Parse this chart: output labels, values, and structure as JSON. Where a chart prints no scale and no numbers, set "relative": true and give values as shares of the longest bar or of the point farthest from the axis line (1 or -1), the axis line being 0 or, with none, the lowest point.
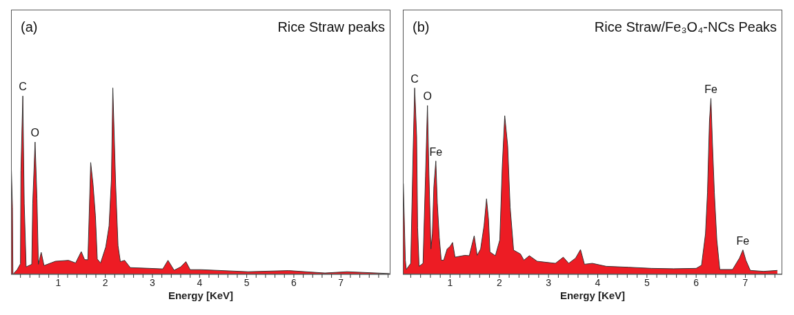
{
  "chart_data": [
    {
      "type": "area",
      "title": "Rice Straw peaks",
      "xlabel": "Energy [KeV]",
      "relative": true,
      "color": "#ed1c24",
      "grid": false,
      "legend": false,
      "annotations": [
        "(a)",
        {
          "text": "C",
          "x": 0.25,
          "y": 0.957
        },
        {
          "text": "O",
          "x": 0.51,
          "y": 0.71
        }
      ],
      "xlim": [
        0,
        8.05
      ],
      "xticks": [
        {
          "value": 0.2,
          "label": null
        },
        {
          "value": 0.4,
          "label": null
        },
        {
          "value": 0.6,
          "label": null
        },
        {
          "value": 0.8,
          "label": null
        },
        1,
        {
          "value": 1.2,
          "label": null
        },
        {
          "value": 1.4,
          "label": null
        },
        {
          "value": 1.6,
          "label": null
        },
        {
          "value": 1.8,
          "label": null
        },
        2,
        {
          "value": 2.2,
          "label": null
        },
        {
          "value": 2.4,
          "label": null
        },
        {
          "value": 2.6,
          "label": null
        },
        {
          "value": 2.8,
          "label": null
        },
        3,
        {
          "value": 3.2,
          "label": null
        },
        {
          "value": 3.4,
          "label": null
        },
        {
          "value": 3.6,
          "label": null
        },
        {
          "value": 3.8,
          "label": null
        },
        4,
        {
          "value": 4.2,
          "label": null
        },
        {
          "value": 4.4,
          "label": null
        },
        {
          "value": 4.6,
          "label": null
        },
        {
          "value": 4.8,
          "label": null
        },
        5,
        {
          "value": 5.2,
          "label": null
        },
        {
          "value": 5.4,
          "label": null
        },
        {
          "value": 5.6,
          "label": null
        },
        {
          "value": 5.8,
          "label": null
        },
        6,
        {
          "value": 6.2,
          "label": null
        },
        {
          "value": 6.4,
          "label": null
        },
        {
          "value": 6.6,
          "label": null
        },
        {
          "value": 6.8,
          "label": null
        },
        7,
        {
          "value": 7.2,
          "label": null
        },
        {
          "value": 7.4,
          "label": null
        },
        {
          "value": 7.6,
          "label": null
        },
        {
          "value": 7.8,
          "label": null
        },
        {
          "value": 8,
          "label": null
        }
      ],
      "x": [
        0,
        0.03,
        0.04,
        0.13,
        0.2,
        0.21,
        0.25,
        0.28,
        0.32,
        0.44,
        0.46,
        0.51,
        0.55,
        0.58,
        0.64,
        0.7,
        0.94,
        1.22,
        1.37,
        1.49,
        1.56,
        1.63,
        1.65,
        1.69,
        1.74,
        1.79,
        1.83,
        1.9,
        2.01,
        2.08,
        2.13,
        2.16,
        2.22,
        2.27,
        2.32,
        2.41,
        2.53,
        2.94,
        3.22,
        3.33,
        3.46,
        3.6,
        3.71,
        3.8,
        4.03,
        5.03,
        5.89,
        6.66,
        7.13,
        8.03
      ],
      "values": [
        0.63,
        0.36,
        0,
        0.025,
        0.057,
        0.556,
        0.957,
        0.38,
        0.04,
        0.054,
        0.38,
        0.71,
        0.405,
        0.054,
        0.118,
        0.047,
        0.07,
        0.075,
        0.061,
        0.122,
        0.079,
        0.078,
        0.244,
        0.6,
        0.484,
        0.315,
        0.082,
        0.061,
        0.147,
        0.26,
        0.51,
        1,
        0.477,
        0.154,
        0.068,
        0.075,
        0.036,
        0.032,
        0.029,
        0.075,
        0.022,
        0.04,
        0.068,
        0.025,
        0.025,
        0.014,
        0.02,
        0.007,
        0.014,
        0.004
      ]
    },
    {
      "type": "area",
      "title": "Rice Straw/Fe₃O₄-NCs Peaks",
      "xlabel": "Energy [KeV]",
      "relative": true,
      "color": "#ed1c24",
      "grid": false,
      "legend": false,
      "annotations": [
        "(b)",
        {
          "text": "C",
          "x": 0.28,
          "y": 1
        },
        {
          "text": "O",
          "x": 0.54,
          "y": 0.906
        },
        {
          "text": "Fe",
          "x": 0.71,
          "y": 0.608
        },
        {
          "text": "Fe",
          "x": 6.3,
          "y": 0.944
        },
        {
          "text": "Fe",
          "x": 6.95,
          "y": 0.131
        }
      ],
      "xlim": [
        0.04,
        7.75
      ],
      "xticks": [
        {
          "value": 0.2,
          "label": null
        },
        {
          "value": 0.4,
          "label": null
        },
        {
          "value": 0.6,
          "label": null
        },
        {
          "value": 0.8,
          "label": null
        },
        1,
        {
          "value": 1.2,
          "label": null
        },
        {
          "value": 1.4,
          "label": null
        },
        {
          "value": 1.6,
          "label": null
        },
        {
          "value": 1.8,
          "label": null
        },
        2,
        {
          "value": 2.2,
          "label": null
        },
        {
          "value": 2.4,
          "label": null
        },
        {
          "value": 2.6,
          "label": null
        },
        {
          "value": 2.8,
          "label": null
        },
        3,
        {
          "value": 3.2,
          "label": null
        },
        {
          "value": 3.4,
          "label": null
        },
        {
          "value": 3.6,
          "label": null
        },
        {
          "value": 3.8,
          "label": null
        },
        4,
        {
          "value": 4.2,
          "label": null
        },
        {
          "value": 4.4,
          "label": null
        },
        {
          "value": 4.6,
          "label": null
        },
        {
          "value": 4.8,
          "label": null
        },
        5,
        {
          "value": 5.2,
          "label": null
        },
        {
          "value": 5.4,
          "label": null
        },
        {
          "value": 5.6,
          "label": null
        },
        {
          "value": 5.8,
          "label": null
        },
        6,
        {
          "value": 6.2,
          "label": null
        },
        {
          "value": 6.4,
          "label": null
        },
        {
          "value": 6.6,
          "label": null
        },
        {
          "value": 6.8,
          "label": null
        },
        7,
        {
          "value": 7.2,
          "label": null
        },
        {
          "value": 7.4,
          "label": null
        },
        {
          "value": 7.6,
          "label": null
        }
      ],
      "x": [
        0.05,
        0.09,
        0.11,
        0.2,
        0.25,
        0.28,
        0.32,
        0.34,
        0.37,
        0.45,
        0.5,
        0.54,
        0.57,
        0.61,
        0.64,
        0.67,
        0.71,
        0.74,
        0.78,
        0.82,
        0.87,
        0.94,
        1,
        1.05,
        1.1,
        1.3,
        1.39,
        1.49,
        1.55,
        1.62,
        1.69,
        1.74,
        1.78,
        1.81,
        1.92,
        2.01,
        2.06,
        2.11,
        2.17,
        2.22,
        2.29,
        2.43,
        2.5,
        2.61,
        2.77,
        3.14,
        3.3,
        3.41,
        3.55,
        3.65,
        3.73,
        3.89,
        4.17,
        4.63,
        5.09,
        5.54,
        6,
        6.11,
        6.19,
        6.23,
        6.27,
        6.3,
        6.33,
        6.37,
        6.42,
        6.48,
        6.74,
        6.88,
        6.95,
        7.01,
        7.1,
        7.37,
        7.65
      ],
      "values": [
        0.487,
        0.076,
        0.026,
        0.059,
        0.68,
        1,
        0.74,
        0.25,
        0.043,
        0.059,
        0.526,
        0.906,
        0.536,
        0.136,
        0.218,
        0.47,
        0.608,
        0.383,
        0.197,
        0.076,
        0.076,
        0.136,
        0.15,
        0.171,
        0.092,
        0.102,
        0.1,
        0.207,
        0.102,
        0.136,
        0.262,
        0.405,
        0.296,
        0.12,
        0.1,
        0.185,
        0.58,
        0.851,
        0.69,
        0.36,
        0.13,
        0.109,
        0.076,
        0.1,
        0.07,
        0.059,
        0.092,
        0.059,
        0.087,
        0.133,
        0.054,
        0.059,
        0.043,
        0.038,
        0.032,
        0.03,
        0.032,
        0.049,
        0.218,
        0.437,
        0.821,
        0.944,
        0.71,
        0.437,
        0.185,
        0.026,
        0.026,
        0.087,
        0.131,
        0.076,
        0.021,
        0.016,
        0.021
      ]
    }
  ]
}
